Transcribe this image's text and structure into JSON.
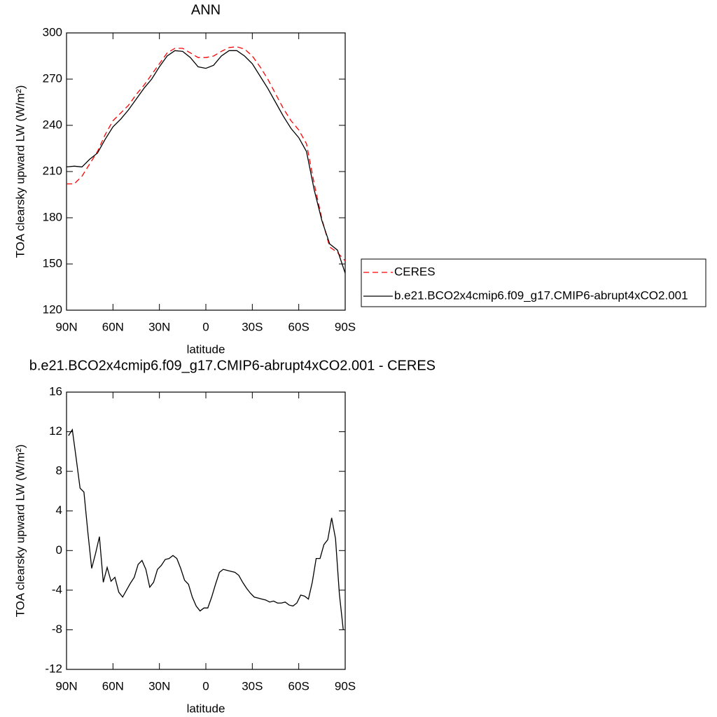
{
  "chart_data": [
    {
      "type": "line",
      "title": "ANN",
      "xlabel": "latitude",
      "ylabel": "TOA clearsky upward LW (W/m²)",
      "x": [
        90,
        85,
        80,
        75,
        70,
        65,
        60,
        55,
        50,
        45,
        40,
        35,
        30,
        25,
        20,
        15,
        10,
        5,
        0,
        -5,
        -10,
        -15,
        -20,
        -25,
        -30,
        -35,
        -40,
        -45,
        -50,
        -55,
        -60,
        -65,
        -70,
        -75,
        -80,
        -85,
        -90
      ],
      "series": [
        {
          "name": "CERES",
          "color": "#ff0000",
          "dash": true,
          "values": [
            202,
            202,
            207,
            215,
            223,
            234,
            243,
            248,
            253,
            260,
            266,
            273,
            280,
            287,
            290,
            290,
            287,
            284,
            284,
            285,
            288,
            290.5,
            291,
            289.5,
            285,
            278,
            270,
            260.5,
            251,
            243,
            237,
            228,
            202,
            179,
            161,
            157.5,
            152
          ]
        },
        {
          "name": "b.e21.BCO2x4cmip6.f09_g17.CMIP6-abrupt4xCO2.001",
          "color": "#000000",
          "dash": false,
          "values": [
            213,
            213.5,
            213,
            218,
            222,
            231,
            239,
            244,
            250,
            257,
            264,
            270,
            278,
            285,
            288.5,
            288,
            284,
            278,
            277,
            279,
            285,
            288.5,
            288.5,
            285,
            280,
            272,
            264,
            255,
            246,
            238,
            232,
            223,
            198,
            178,
            163,
            159,
            144
          ]
        }
      ],
      "xlim": [
        90,
        -90
      ],
      "xticks": [
        {
          "value": 90,
          "label": "90N"
        },
        {
          "value": 60,
          "label": "60N"
        },
        {
          "value": 30,
          "label": "30N"
        },
        0,
        {
          "value": -30,
          "label": "30S"
        },
        {
          "value": -60,
          "label": "60S"
        },
        {
          "value": -90,
          "label": "90S"
        }
      ],
      "ylim": [
        120,
        300
      ],
      "yticks": [
        120,
        150,
        180,
        210,
        240,
        270,
        300
      ],
      "legend": "right"
    },
    {
      "type": "line",
      "title": "b.e21.BCO2x4cmip6.f09_g17.CMIP6-abrupt4xCO2.001 - CERES",
      "xlabel": "latitude",
      "ylabel": "TOA clearsky upward LW (W/m²)",
      "x": [
        88.75,
        86.25,
        83.75,
        81.25,
        78.75,
        76.25,
        73.75,
        71.25,
        68.75,
        66.25,
        63.75,
        61.25,
        58.75,
        56.25,
        53.75,
        51.25,
        48.75,
        46.25,
        43.75,
        41.25,
        38.75,
        36.25,
        33.75,
        31.25,
        28.75,
        26.25,
        23.75,
        21.25,
        18.75,
        16.25,
        13.75,
        11.25,
        8.75,
        6.25,
        3.75,
        1.25,
        -1.25,
        -3.75,
        -6.25,
        -8.75,
        -11.25,
        -13.75,
        -16.25,
        -18.75,
        -21.25,
        -23.75,
        -26.25,
        -28.75,
        -31.25,
        -33.75,
        -36.25,
        -38.75,
        -41.25,
        -43.75,
        -46.25,
        -48.75,
        -51.25,
        -53.75,
        -56.25,
        -58.75,
        -61.25,
        -63.75,
        -66.25,
        -68.75,
        -71.25,
        -73.75,
        -76.25,
        -78.75,
        -81.25,
        -83.75,
        -86.25,
        -88.75
      ],
      "series": [
        {
          "color": "#000000",
          "dash": false,
          "values": [
            11.6,
            12.2,
            9.3,
            6.3,
            5.9,
            1.9,
            -1.8,
            -0.3,
            1.4,
            -3.2,
            -1.7,
            -3.1,
            -2.7,
            -4.2,
            -4.7,
            -4.0,
            -3.3,
            -2.7,
            -1.4,
            -1.0,
            -1.9,
            -3.7,
            -3.2,
            -1.9,
            -1.5,
            -0.9,
            -0.8,
            -0.5,
            -0.8,
            -1.8,
            -3.0,
            -3.4,
            -4.7,
            -5.6,
            -6.1,
            -5.8,
            -5.8,
            -4.7,
            -3.4,
            -2.2,
            -1.9,
            -2.0,
            -2.1,
            -2.2,
            -2.5,
            -3.2,
            -3.8,
            -4.3,
            -4.7,
            -4.8,
            -4.9,
            -5.0,
            -5.2,
            -5.1,
            -5.3,
            -5.3,
            -5.2,
            -5.5,
            -5.6,
            -5.3,
            -4.5,
            -4.6,
            -4.9,
            -3.2,
            -0.8,
            -0.8,
            0.6,
            1.1,
            3.3,
            1.2,
            -4.4,
            -8.0
          ]
        }
      ],
      "xlim": [
        90,
        -90
      ],
      "xticks": [
        {
          "value": 90,
          "label": "90N"
        },
        {
          "value": 60,
          "label": "60N"
        },
        {
          "value": 30,
          "label": "30N"
        },
        0,
        {
          "value": -30,
          "label": "30S"
        },
        {
          "value": -60,
          "label": "60S"
        },
        {
          "value": -90,
          "label": "90S"
        }
      ],
      "ylim": [
        -12,
        16
      ],
      "yticks": [
        -12,
        -8,
        -4,
        0,
        4,
        8,
        12,
        16
      ]
    }
  ]
}
